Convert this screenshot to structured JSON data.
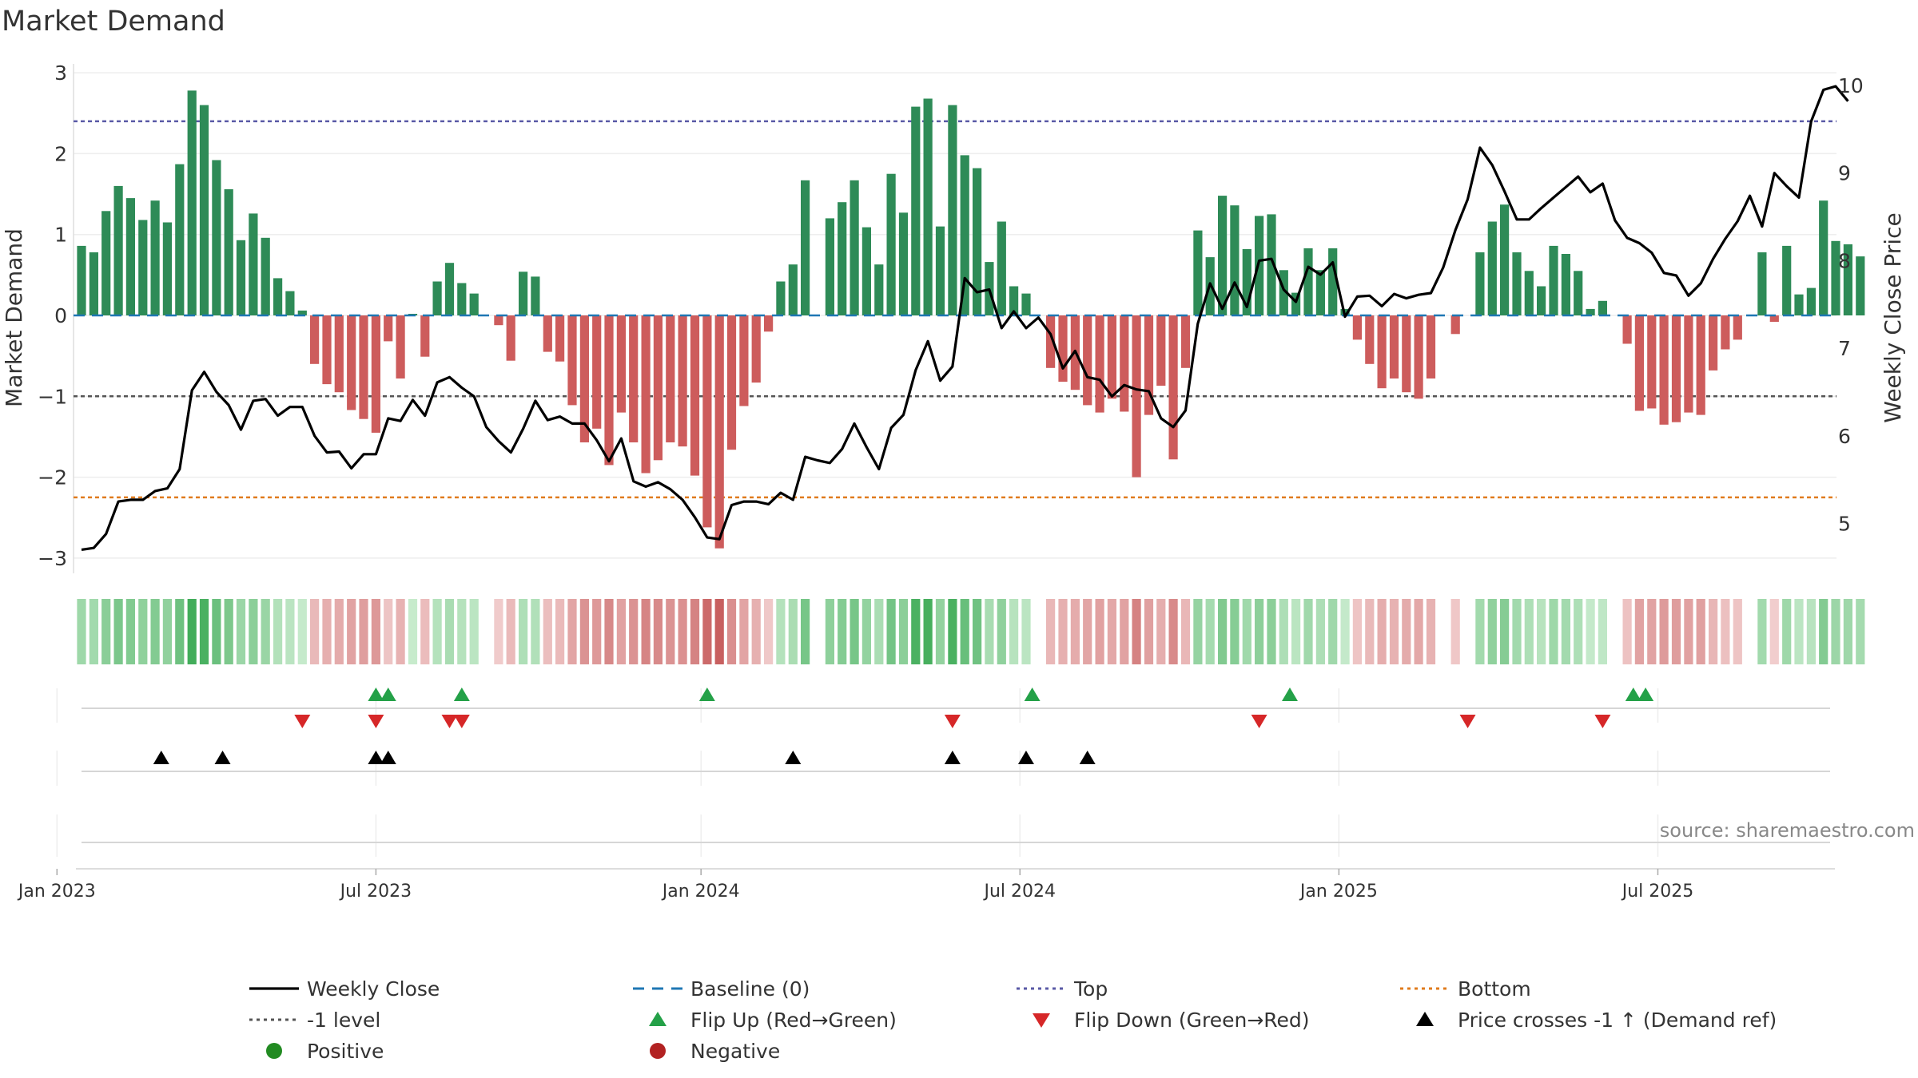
{
  "chart_data": {
    "type": "bar",
    "title": "Market Demand",
    "ylabel": "Market Demand",
    "y2label": "Weekly Close Price",
    "ylim": [
      -3.2,
      3.1
    ],
    "y2lim": [
      4.55,
      10.1
    ],
    "yticks": [
      "3",
      "2",
      "1",
      "0",
      "−1",
      "−2",
      "−3"
    ],
    "ytick_values": [
      3,
      2,
      1,
      0,
      -1,
      -2,
      -3
    ],
    "y2ticks": [
      "10",
      "9",
      "8",
      "7",
      "6",
      "5"
    ],
    "y2tick_values": [
      10,
      9,
      8,
      7,
      6,
      5
    ],
    "xticks": [
      "Jan 2023",
      "Jul 2023",
      "Jan 2024",
      "Jul 2024",
      "Jan 2025",
      "Jul 2025"
    ],
    "xtick_weeks": [
      -2,
      24,
      50.5,
      76.5,
      102.5,
      128.5
    ],
    "reference_lines": {
      "top": 2.4,
      "minus_one": -1.0,
      "bottom": -2.25
    },
    "demand": [
      0.86,
      0.78,
      1.29,
      1.6,
      1.45,
      1.18,
      1.42,
      1.15,
      1.87,
      2.78,
      2.6,
      1.92,
      1.56,
      0.93,
      1.26,
      0.96,
      0.46,
      0.3,
      0.06,
      -0.6,
      -0.85,
      -0.95,
      -1.17,
      -1.28,
      -1.45,
      -0.32,
      -0.78,
      0.02,
      -0.51,
      0.42,
      0.65,
      0.4,
      0.27,
      0.0,
      -0.12,
      -0.56,
      0.54,
      0.48,
      -0.45,
      -0.57,
      -1.11,
      -1.57,
      -1.4,
      -1.85,
      -1.2,
      -1.57,
      -1.95,
      -1.79,
      -1.57,
      -1.62,
      -1.98,
      -2.62,
      -2.88,
      -1.66,
      -1.12,
      -0.83,
      -0.2,
      0.42,
      0.63,
      1.67,
      0.0,
      1.2,
      1.4,
      1.67,
      1.09,
      0.63,
      1.75,
      1.27,
      2.58,
      2.68,
      1.1,
      2.6,
      1.98,
      1.82,
      0.66,
      1.16,
      0.36,
      0.27,
      0.0,
      -0.65,
      -0.82,
      -0.92,
      -1.11,
      -1.2,
      -1.03,
      -1.19,
      -2.0,
      -1.23,
      -0.87,
      -1.78,
      -0.65,
      1.05,
      0.72,
      1.48,
      1.36,
      0.82,
      1.23,
      1.25,
      0.56,
      0.28,
      0.83,
      0.56,
      0.83,
      0.08,
      -0.3,
      -0.6,
      -0.9,
      -0.78,
      -0.95,
      -1.03,
      -0.78,
      0.0,
      -0.23,
      0.0,
      0.78,
      1.16,
      1.37,
      0.78,
      0.55,
      0.36,
      0.86,
      0.76,
      0.55,
      0.08,
      0.18,
      0.0,
      -0.35,
      -1.18,
      -1.15,
      -1.35,
      -1.32,
      -1.2,
      -1.23,
      -0.68,
      -0.42,
      -0.3,
      0.0,
      0.78,
      -0.08,
      0.86,
      0.26,
      0.34,
      1.42,
      0.92,
      0.88,
      0.73
    ],
    "close": [
      4.7,
      4.72,
      4.88,
      5.25,
      5.27,
      5.27,
      5.37,
      5.4,
      5.62,
      6.52,
      6.73,
      6.5,
      6.35,
      6.07,
      6.4,
      6.42,
      6.23,
      6.33,
      6.33,
      6.0,
      5.81,
      5.82,
      5.63,
      5.79,
      5.79,
      6.2,
      6.17,
      6.41,
      6.23,
      6.61,
      6.67,
      6.55,
      6.45,
      6.1,
      5.94,
      5.81,
      6.08,
      6.4,
      6.18,
      6.22,
      6.14,
      6.14,
      5.95,
      5.71,
      5.97,
      5.48,
      5.42,
      5.47,
      5.39,
      5.27,
      5.07,
      4.84,
      4.82,
      5.21,
      5.25,
      5.25,
      5.22,
      5.35,
      5.27,
      5.76,
      5.72,
      5.69,
      5.85,
      6.14,
      5.87,
      5.62,
      6.09,
      6.24,
      6.75,
      7.08,
      6.63,
      6.79,
      7.8,
      7.64,
      7.67,
      7.23,
      7.42,
      7.23,
      7.35,
      7.16,
      6.77,
      6.97,
      6.67,
      6.64,
      6.45,
      6.58,
      6.53,
      6.51,
      6.2,
      6.1,
      6.29,
      7.28,
      7.74,
      7.45,
      7.75,
      7.47,
      8.0,
      8.02,
      7.67,
      7.53,
      7.93,
      7.84,
      7.98,
      7.36,
      7.59,
      7.6,
      7.48,
      7.62,
      7.57,
      7.61,
      7.63,
      7.92,
      8.35,
      8.7,
      9.29,
      9.09,
      8.79,
      8.47,
      8.47,
      8.6,
      8.72,
      8.84,
      8.96,
      8.78,
      8.88,
      8.46,
      8.26,
      8.2,
      8.09,
      7.86,
      7.83,
      7.6,
      7.74,
      8.02,
      8.25,
      8.45,
      8.74,
      8.39,
      9.0,
      8.85,
      8.72,
      9.59,
      9.95,
      9.99,
      9.82
    ],
    "flip_up_weeks": [
      24,
      25,
      31,
      51,
      77.5,
      98.5,
      126.5,
      127.5
    ],
    "flip_down_weeks": [
      18,
      24,
      30,
      31,
      71,
      96,
      113,
      124
    ],
    "price_cross_weeks": [
      6.5,
      11.5,
      24,
      25,
      58,
      71,
      77,
      82
    ],
    "source": "source: sharemaestro.com",
    "legend": [
      {
        "key": "weekly-close",
        "label": "Weekly Close",
        "marker": "line",
        "color": "#000000"
      },
      {
        "key": "baseline",
        "label": "Baseline (0)",
        "marker": "dash",
        "color": "#1f77b4"
      },
      {
        "key": "top",
        "label": "Top",
        "marker": "dot",
        "color": "#5a5aa6"
      },
      {
        "key": "bottom",
        "label": "Bottom",
        "marker": "dot",
        "color": "#e07b1c"
      },
      {
        "key": "minus-one",
        "label": "-1 level",
        "marker": "dot",
        "color": "#555555"
      },
      {
        "key": "flip-up",
        "label": "Flip Up (Red→Green)",
        "marker": "tri-up",
        "color": "#24a148"
      },
      {
        "key": "flip-down",
        "label": "Flip Down (Green→Red)",
        "marker": "tri-down",
        "color": "#d62728"
      },
      {
        "key": "price-cross",
        "label": "Price crosses -1 ↑ (Demand ref)",
        "marker": "tri-up",
        "color": "#000000"
      },
      {
        "key": "positive",
        "label": "Positive",
        "marker": "circle",
        "color": "#228b22"
      },
      {
        "key": "negative",
        "label": "Negative",
        "marker": "circle",
        "color": "#b22222"
      }
    ],
    "colors": {
      "positive_bar": "#2e8b57",
      "negative_bar": "#cd5c5c",
      "baseline": "#1f77b4",
      "top": "#5a5aa6",
      "bottom": "#e07b1c",
      "minus_one": "#555555",
      "close": "#000000"
    }
  }
}
